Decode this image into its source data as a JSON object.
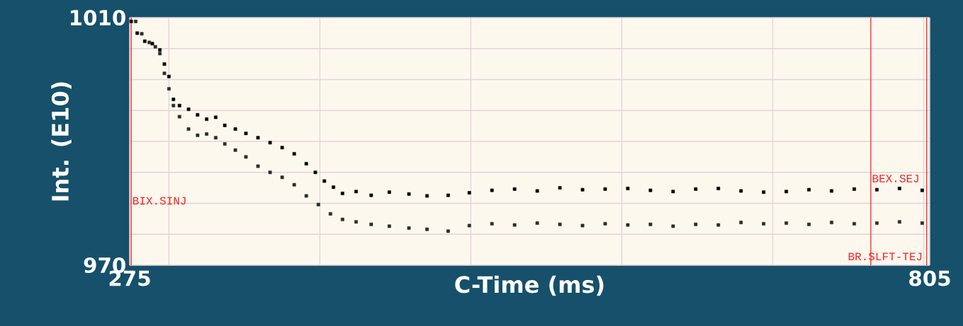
{
  "chart_data": {
    "type": "scatter",
    "xlabel": "C-Time (ms)",
    "ylabel": "Int. (E10)",
    "xlim": [
      275,
      805
    ],
    "ylim": [
      970,
      1010
    ],
    "xticks": [
      275,
      {
        "value": 301,
        "label": null
      },
      {
        "value": 401,
        "label": null
      },
      {
        "value": 501,
        "label": null
      },
      {
        "value": 601,
        "label": null
      },
      {
        "value": 701,
        "label": null
      },
      {
        "value": 801,
        "label": null
      },
      805
    ],
    "yticks": [
      970,
      {
        "value": 975,
        "label": null
      },
      {
        "value": 980,
        "label": null
      },
      {
        "value": 985,
        "label": null
      },
      {
        "value": 990,
        "label": null
      },
      {
        "value": 995,
        "label": null
      },
      {
        "value": 1000,
        "label": null
      },
      {
        "value": 1005,
        "label": null
      },
      1010
    ],
    "grid": true,
    "marker": "square",
    "series": [
      {
        "color": "#000000",
        "x": [
          276,
          280,
          285,
          290,
          295,
          298,
          301,
          304,
          308,
          314,
          320,
          326,
          332,
          338,
          345,
          352,
          360,
          368,
          376,
          384,
          392,
          398,
          404,
          410,
          416,
          425,
          435,
          447,
          460,
          472,
          486,
          500,
          515,
          530,
          545,
          560,
          575,
          590,
          605,
          620,
          635,
          650,
          665,
          680,
          695,
          710,
          725,
          740,
          755,
          770,
          785,
          800
        ],
        "values": [
          1009.4,
          1007.5,
          1006.2,
          1005.8,
          1004.8,
          1002.5,
          1000.5,
          996.8,
          995.8,
          995.2,
          994.3,
          993.6,
          993.9,
          992.6,
          992.0,
          991.3,
          990.6,
          989.8,
          989.0,
          988.0,
          986.4,
          985.0,
          983.6,
          982.6,
          981.6,
          981.9,
          981.3,
          981.8,
          981.5,
          981.2,
          981.3,
          981.7,
          982.1,
          982.3,
          982.0,
          982.5,
          982.2,
          982.3,
          982.4,
          982.1,
          981.9,
          982.3,
          982.4,
          982.0,
          981.8,
          981.9,
          982.2,
          982.0,
          982.3,
          982.2,
          982.4,
          982.1
        ]
      },
      {
        "color": "#2b2b2b",
        "x": [
          279,
          283,
          288,
          292,
          295,
          298,
          301,
          304,
          308,
          314,
          320,
          326,
          332,
          338,
          345,
          352,
          360,
          368,
          376,
          384,
          392,
          400,
          408,
          416,
          425,
          435,
          447,
          460,
          472,
          486,
          500,
          515,
          530,
          545,
          560,
          575,
          590,
          605,
          620,
          635,
          650,
          665,
          680,
          695,
          710,
          725,
          740,
          755,
          770,
          785,
          800
        ],
        "values": [
          1009.4,
          1007.4,
          1006.0,
          1005.3,
          1004.2,
          1001.0,
          998.5,
          995.8,
          994.0,
          992.0,
          991.0,
          991.2,
          990.6,
          989.6,
          988.6,
          987.5,
          986.0,
          985.0,
          984.2,
          983.0,
          981.2,
          979.8,
          978.3,
          977.4,
          977.0,
          976.6,
          976.3,
          976.0,
          975.8,
          975.5,
          976.4,
          976.7,
          976.5,
          976.8,
          976.6,
          976.4,
          976.7,
          976.5,
          976.6,
          976.3,
          976.6,
          976.5,
          976.9,
          976.7,
          976.8,
          976.6,
          976.9,
          976.7,
          976.8,
          977.0,
          976.8
        ]
      }
    ],
    "ref_lines": [
      {
        "axis": "x",
        "value": 276,
        "label": "BIX.SINJ",
        "color": "#ff2020"
      },
      {
        "axis": "x",
        "value": 766,
        "label": "BEX.SEJ",
        "color": "#ff2020"
      },
      {
        "axis": "x",
        "value": 803,
        "label": "BR.SLFT-TEJ",
        "color": "#ff2020"
      }
    ]
  }
}
